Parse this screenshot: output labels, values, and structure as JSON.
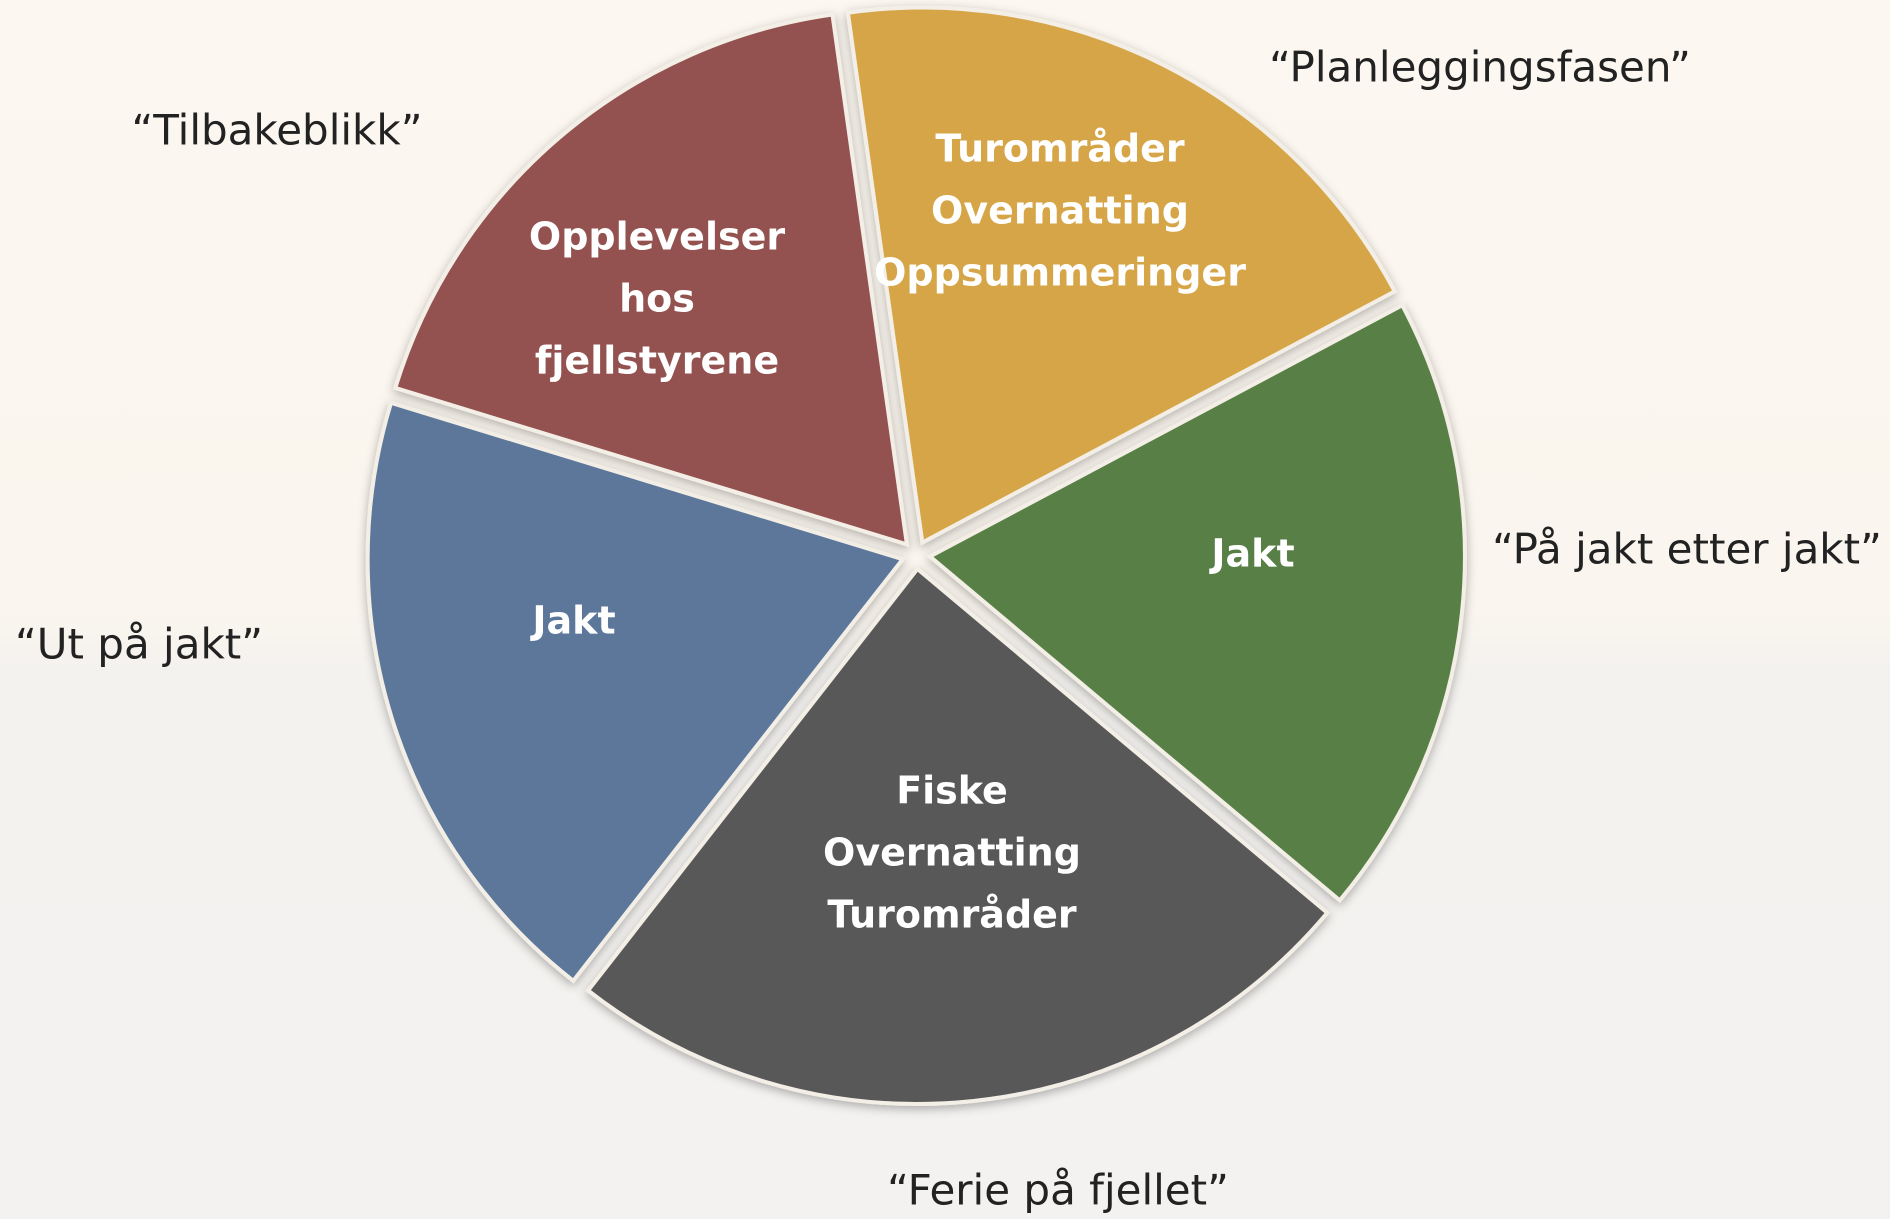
{
  "segments": [
    {
      "lines": [
        "Turområder",
        "Overnatting",
        "Oppsummeringer"
      ],
      "caption": "“Planleggingsfasen”"
    },
    {
      "lines": [
        "Jakt"
      ],
      "caption": "“På jakt etter jakt”"
    },
    {
      "lines": [
        "Fiske",
        "Overnatting",
        "Turområder"
      ],
      "caption": "“Ferie på fjellet”"
    },
    {
      "lines": [
        "Jakt"
      ],
      "caption": "“Ut på jakt”"
    },
    {
      "lines": [
        "Opplevelser",
        "hos",
        "fjellstyrene"
      ],
      "caption": "“Tilbakeblikk”"
    }
  ]
}
